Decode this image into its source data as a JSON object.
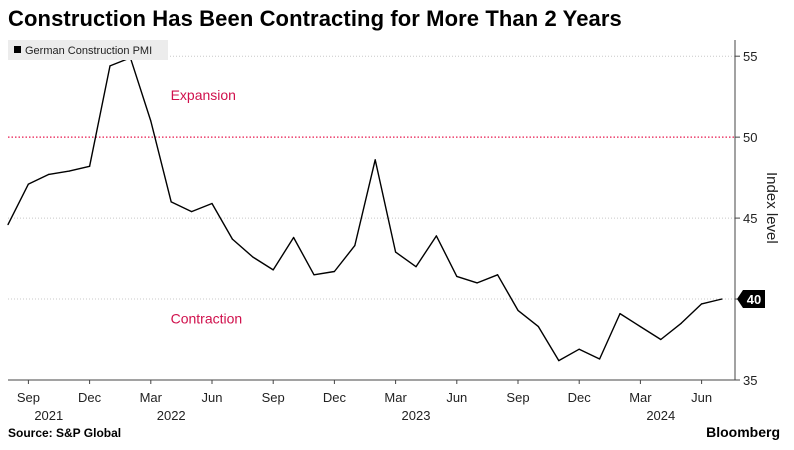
{
  "title": "Construction Has Been Contracting for More Than 2 Years",
  "source": "Source: S&P Global",
  "brand": "Bloomberg",
  "chart_data": {
    "type": "line",
    "legend": {
      "label": "German Construction PMI",
      "placement": "top-left"
    },
    "ylabel": "Index level",
    "ylim": [
      35,
      56
    ],
    "yticks": [
      35,
      40,
      45,
      50,
      55
    ],
    "reference_line": {
      "value": 50,
      "color": "#e8194f",
      "style": "dotted"
    },
    "annotations": [
      {
        "text": "Expansion",
        "x": "2021-12",
        "y": 52.6
      },
      {
        "text": "Contraction",
        "x": "2021-12",
        "y": 38.8
      }
    ],
    "last_value_label": "40",
    "x_tick_labels": [
      "Sep",
      "Dec",
      "Mar",
      "Jun",
      "Sep",
      "Dec",
      "Mar",
      "Jun",
      "Sep",
      "Dec",
      "Mar",
      "Jun"
    ],
    "x_tick_dates": [
      "2021-09",
      "2021-12",
      "2022-03",
      "2022-06",
      "2022-09",
      "2022-12",
      "2023-03",
      "2023-06",
      "2023-09",
      "2023-12",
      "2024-03",
      "2024-06"
    ],
    "year_labels": [
      {
        "text": "2021",
        "date": "2021-10"
      },
      {
        "text": "2022",
        "date": "2022-04"
      },
      {
        "text": "2023",
        "date": "2023-04"
      },
      {
        "text": "2024",
        "date": "2024-04"
      }
    ],
    "series": [
      {
        "line_color": "#000000",
        "x": [
          "2021-08",
          "2021-09",
          "2021-10",
          "2021-11",
          "2021-12",
          "2022-01",
          "2022-02",
          "2022-03",
          "2022-04",
          "2022-05",
          "2022-06",
          "2022-07",
          "2022-08",
          "2022-09",
          "2022-10",
          "2022-11",
          "2022-12",
          "2023-01",
          "2023-02",
          "2023-03",
          "2023-04",
          "2023-05",
          "2023-06",
          "2023-07",
          "2023-08",
          "2023-09",
          "2023-10",
          "2023-11",
          "2023-12",
          "2024-01",
          "2024-02",
          "2024-03",
          "2024-04",
          "2024-05",
          "2024-06",
          "2024-07"
        ],
        "values": [
          44.6,
          47.1,
          47.7,
          47.9,
          48.2,
          54.4,
          54.9,
          51.0,
          46.0,
          45.4,
          45.9,
          43.7,
          42.6,
          41.8,
          43.8,
          41.5,
          41.7,
          43.3,
          48.6,
          42.9,
          42.0,
          43.9,
          41.4,
          41.0,
          41.5,
          39.3,
          38.3,
          36.2,
          36.9,
          36.3,
          39.1,
          38.3,
          37.5,
          38.5,
          39.7,
          40.0
        ]
      }
    ]
  }
}
